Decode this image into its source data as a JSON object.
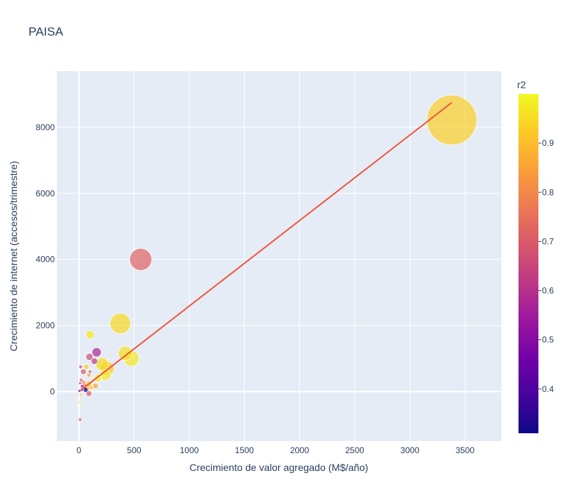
{
  "chart_data": {
    "type": "scatter",
    "title": "PAISA",
    "xlabel": "Crecimiento de valor agregado (M$/año)",
    "ylabel": "Crecimiento de internet (accesos/trimestre)",
    "xlim": [
      -200,
      3830
    ],
    "ylim": [
      -1500,
      9700
    ],
    "x_ticks": [
      0,
      500,
      1000,
      1500,
      2000,
      2500,
      3000,
      3500
    ],
    "y_ticks": [
      0,
      2000,
      4000,
      6000,
      8000
    ],
    "grid": true,
    "colorbar": {
      "title": "r2",
      "min": 0.31,
      "max": 1.0,
      "ticks": [
        0.4,
        0.5,
        0.6,
        0.7,
        0.8,
        0.9
      ],
      "colors": [
        "#0d0887",
        "#46039f",
        "#7201a8",
        "#9c179e",
        "#bd3786",
        "#d8576b",
        "#ed7953",
        "#fb9f3a",
        "#fdca26",
        "#f0f921"
      ]
    },
    "trendline": {
      "x": [
        20,
        3380
      ],
      "y": [
        50,
        8750
      ],
      "color": "#ef553b"
    },
    "points": [
      {
        "x": 3380,
        "y": 8220,
        "size": 70,
        "r2": 0.93
      },
      {
        "x": 560,
        "y": 4000,
        "size": 31,
        "r2": 0.72
      },
      {
        "x": 375,
        "y": 2060,
        "size": 29,
        "r2": 0.95
      },
      {
        "x": 420,
        "y": 1160,
        "size": 20,
        "r2": 0.96
      },
      {
        "x": 475,
        "y": 1000,
        "size": 22,
        "r2": 0.97
      },
      {
        "x": 255,
        "y": 700,
        "size": 20,
        "r2": 0.92
      },
      {
        "x": 210,
        "y": 830,
        "size": 18,
        "r2": 0.95
      },
      {
        "x": 240,
        "y": 500,
        "size": 15,
        "r2": 0.98
      },
      {
        "x": 100,
        "y": 1720,
        "size": 12,
        "r2": 0.97
      },
      {
        "x": 160,
        "y": 1190,
        "size": 13,
        "r2": 0.58
      },
      {
        "x": 95,
        "y": 1050,
        "size": 10,
        "r2": 0.67
      },
      {
        "x": 140,
        "y": 920,
        "size": 9,
        "r2": 0.62
      },
      {
        "x": 170,
        "y": 400,
        "size": 11,
        "r2": 0.98
      },
      {
        "x": 65,
        "y": 750,
        "size": 8,
        "r2": 0.94
      },
      {
        "x": 40,
        "y": 600,
        "size": 8,
        "r2": 0.7
      },
      {
        "x": 100,
        "y": 600,
        "size": 5,
        "r2": 0.7
      },
      {
        "x": 90,
        "y": 500,
        "size": 6,
        "r2": 0.85
      },
      {
        "x": 150,
        "y": 170,
        "size": 8,
        "r2": 0.86
      },
      {
        "x": 90,
        "y": 230,
        "size": 9,
        "r2": 0.92
      },
      {
        "x": 70,
        "y": 130,
        "size": 10,
        "r2": 0.82
      },
      {
        "x": 60,
        "y": 50,
        "size": 7,
        "r2": 0.31
      },
      {
        "x": 90,
        "y": -60,
        "size": 8,
        "r2": 0.7
      },
      {
        "x": 40,
        "y": 280,
        "size": 6,
        "r2": 0.76
      },
      {
        "x": 30,
        "y": 160,
        "size": 5,
        "r2": 0.55
      },
      {
        "x": 20,
        "y": 350,
        "size": 5,
        "r2": 0.7
      },
      {
        "x": 15,
        "y": 750,
        "size": 5,
        "r2": 0.64
      },
      {
        "x": 10,
        "y": 250,
        "size": 4,
        "r2": 0.62
      },
      {
        "x": 25,
        "y": 50,
        "size": 5,
        "r2": 0.55
      },
      {
        "x": 15,
        "y": -100,
        "size": 4,
        "r2": 0.9
      },
      {
        "x": 10,
        "y": -330,
        "size": 4,
        "r2": 0.95
      },
      {
        "x": 10,
        "y": -850,
        "size": 5,
        "r2": 0.72
      },
      {
        "x": 110,
        "y": 120,
        "size": 6,
        "r2": 0.9
      },
      {
        "x": 50,
        "y": 200,
        "size": 6,
        "r2": 0.78
      },
      {
        "x": 5,
        "y": 20,
        "size": 4,
        "r2": 0.45
      }
    ]
  }
}
